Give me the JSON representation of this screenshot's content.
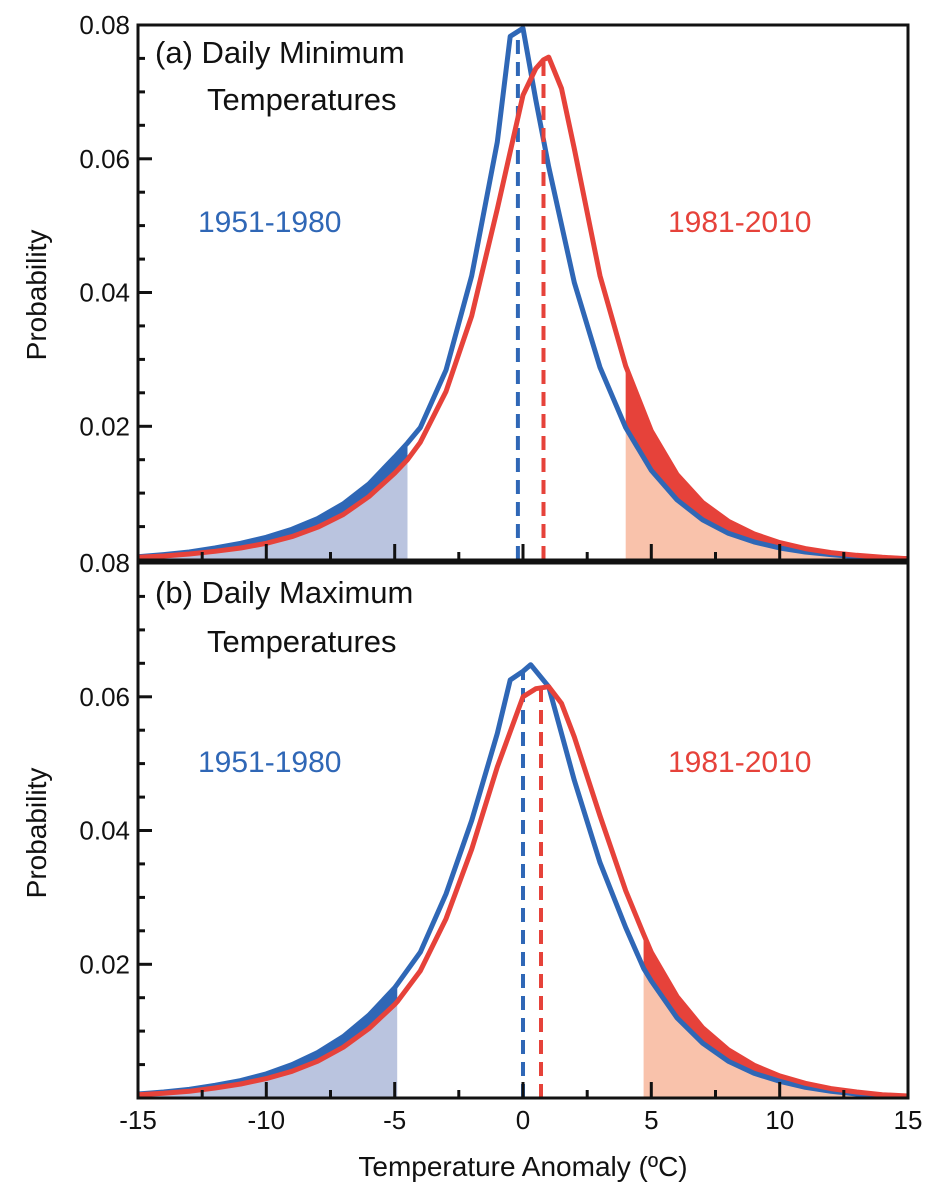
{
  "chart_data": [
    {
      "type": "line",
      "title": "(a) Daily Minimum Temperatures",
      "title_lines": [
        "(a) Daily Minimum",
        "Temperatures"
      ],
      "ylabel": "Probability",
      "xlabel": "",
      "xlim": [
        -15,
        15
      ],
      "ylim": [
        0,
        0.08
      ],
      "xticks": [],
      "yticks": [
        {
          "value": 0.08,
          "label": "0.08"
        },
        {
          "value": 0.06,
          "label": "0.06"
        },
        {
          "value": 0.04,
          "label": "0.04"
        },
        {
          "value": 0.02,
          "label": "0.02"
        }
      ],
      "grid": false,
      "colors": {
        "blue": "#2f67b6",
        "red": "#e6423a",
        "blue_fill": "#bac4df",
        "red_fill": "#f9c2ab"
      },
      "series": [
        {
          "name": "1951-1980",
          "color": "#2f67b6",
          "mean": -0.2,
          "lower_tail_below": -4.5,
          "upper_tail_above": 4,
          "x": [
            -15,
            -14,
            -13,
            -12,
            -11,
            -10,
            -9,
            -8,
            -7,
            -6,
            -5,
            -4.5,
            -4,
            -3,
            -2,
            -1,
            -0.5,
            0,
            0.5,
            1,
            2,
            3,
            4,
            5,
            6,
            7,
            8,
            9,
            10,
            11,
            12,
            13,
            14,
            15
          ],
          "y": [
            0.0005,
            0.0008,
            0.0012,
            0.0018,
            0.0025,
            0.0034,
            0.0046,
            0.0062,
            0.0084,
            0.0114,
            0.0154,
            0.0175,
            0.0198,
            0.0284,
            0.0425,
            0.0625,
            0.0783,
            0.0795,
            0.0688,
            0.0588,
            0.0415,
            0.0288,
            0.0198,
            0.0134,
            0.009,
            0.006,
            0.004,
            0.0027,
            0.0018,
            0.0012,
            0.0008,
            0.0005,
            0.0003,
            0.0002
          ]
        },
        {
          "name": "1981-2010",
          "color": "#e6423a",
          "mean": 0.8,
          "lower_tail_below": -4.5,
          "upper_tail_above": 4,
          "x": [
            -15,
            -14,
            -13,
            -12,
            -11,
            -10,
            -9,
            -8,
            -7,
            -6,
            -5,
            -4.5,
            -4,
            -3,
            -2,
            -1,
            0,
            0.5,
            0.8,
            1,
            1.5,
            2,
            3,
            4,
            5,
            6,
            7,
            8,
            9,
            10,
            11,
            12,
            13,
            14,
            15
          ],
          "y": [
            0.0004,
            0.0006,
            0.0009,
            0.0013,
            0.0018,
            0.0025,
            0.0035,
            0.0049,
            0.0068,
            0.0095,
            0.013,
            0.015,
            0.0176,
            0.0252,
            0.0365,
            0.0525,
            0.0695,
            0.0735,
            0.0748,
            0.0752,
            0.0705,
            0.0615,
            0.0425,
            0.029,
            0.0193,
            0.0128,
            0.0086,
            0.0058,
            0.0039,
            0.0026,
            0.0017,
            0.0011,
            0.0007,
            0.0004,
            0.0002
          ]
        }
      ]
    },
    {
      "type": "line",
      "title": "(b) Daily Maximum Temperatures",
      "title_lines": [
        "(b) Daily Maximum",
        "Temperatures"
      ],
      "ylabel": "Probability",
      "xlabel": "Temperature Anomaly (ºC)",
      "xlim": [
        -15,
        15
      ],
      "ylim": [
        0,
        0.08
      ],
      "xticks": [
        {
          "value": -15,
          "label": "-15"
        },
        {
          "value": -10,
          "label": "-10"
        },
        {
          "value": -5,
          "label": "-5"
        },
        {
          "value": 0,
          "label": "0"
        },
        {
          "value": 5,
          "label": "5"
        },
        {
          "value": 10,
          "label": "10"
        },
        {
          "value": 15,
          "label": "15"
        }
      ],
      "yticks": [
        {
          "value": 0.08,
          "label": "0.08"
        },
        {
          "value": 0.06,
          "label": "0.06"
        },
        {
          "value": 0.04,
          "label": "0.04"
        },
        {
          "value": 0.02,
          "label": "0.02"
        }
      ],
      "grid": false,
      "colors": {
        "blue": "#2f67b6",
        "red": "#e6423a",
        "blue_fill": "#bac4df",
        "red_fill": "#f9c2ab"
      },
      "series": [
        {
          "name": "1951-1980",
          "color": "#2f67b6",
          "mean": 0,
          "lower_tail_below": -4.9,
          "upper_tail_above": 4.7,
          "x": [
            -15,
            -14,
            -13,
            -12,
            -11,
            -10,
            -9,
            -8,
            -7,
            -6,
            -5,
            -4.9,
            -4,
            -3,
            -2,
            -1,
            -0.5,
            0,
            0.3,
            1,
            2,
            3,
            4,
            4.7,
            5,
            6,
            7,
            8,
            9,
            10,
            11,
            12,
            13,
            14,
            15
          ],
          "y": [
            0.0006,
            0.0009,
            0.0013,
            0.0019,
            0.0026,
            0.0036,
            0.005,
            0.0068,
            0.0092,
            0.0124,
            0.0165,
            0.017,
            0.0218,
            0.0305,
            0.0415,
            0.0545,
            0.0625,
            0.0638,
            0.0648,
            0.0615,
            0.0475,
            0.0352,
            0.0255,
            0.0194,
            0.0175,
            0.012,
            0.0082,
            0.0055,
            0.0037,
            0.0025,
            0.0016,
            0.001,
            0.0006,
            0.0004,
            0.0002
          ]
        },
        {
          "name": "1981-2010",
          "color": "#e6423a",
          "mean": 0.7,
          "lower_tail_below": -4.9,
          "upper_tail_above": 4.7,
          "x": [
            -15,
            -14,
            -13,
            -12,
            -11,
            -10,
            -9,
            -8,
            -7,
            -6,
            -5,
            -4.9,
            -4,
            -3,
            -2,
            -1,
            0,
            0.5,
            1,
            1.5,
            2,
            3,
            4,
            4.7,
            5,
            6,
            7,
            8,
            9,
            10,
            11,
            12,
            13,
            14,
            15
          ],
          "y": [
            0.0005,
            0.0007,
            0.001,
            0.0015,
            0.0021,
            0.0029,
            0.004,
            0.0055,
            0.0076,
            0.0104,
            0.014,
            0.0144,
            0.019,
            0.0268,
            0.0372,
            0.0495,
            0.06,
            0.0612,
            0.0615,
            0.059,
            0.054,
            0.0422,
            0.031,
            0.0245,
            0.0218,
            0.0152,
            0.0105,
            0.0072,
            0.0049,
            0.0033,
            0.0022,
            0.0014,
            0.0009,
            0.0005,
            0.0003
          ]
        }
      ]
    }
  ]
}
